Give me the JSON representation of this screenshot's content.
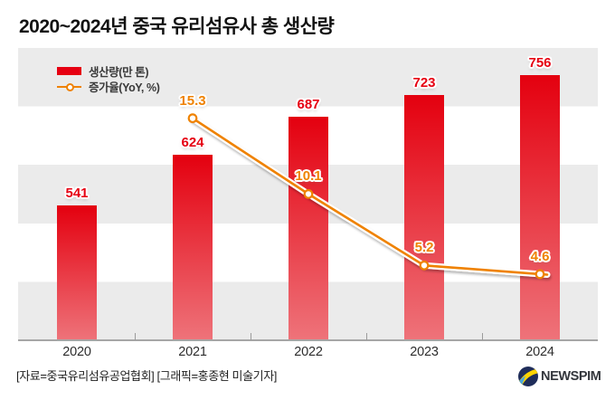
{
  "title": "2020~2024년 중국 유리섬유사 총 생산량",
  "legend": {
    "items": [
      {
        "label": "생산량(만 톤)",
        "type": "bar"
      },
      {
        "label": "증가율(YoY, %)",
        "type": "line"
      }
    ]
  },
  "chart_data": {
    "type": "combo-bar-line",
    "categories": [
      "2020",
      "2021",
      "2022",
      "2023",
      "2024"
    ],
    "series": [
      {
        "name": "생산량(만 톤)",
        "type": "bar",
        "values": [
          541,
          624,
          687,
          723,
          756
        ]
      },
      {
        "name": "증가율(YoY, %)",
        "type": "line",
        "values": [
          null,
          15.3,
          10.1,
          5.2,
          4.6
        ]
      }
    ],
    "title": "2020~2024년 중국 유리섬유사 총 생산량",
    "xlabel": "",
    "ylabel": "",
    "legend_position": "top-left",
    "grid": "horizontal alternating gray/white bands",
    "bar_labels_shown": true,
    "line_labels_shown": true
  },
  "colors": {
    "bar_top": "#e4000f",
    "bar_bottom": "#ee737a",
    "bar_label": "#e60012",
    "line": "#ef8200",
    "band_gray": "#ebebeb",
    "axis": "#a6a6a6",
    "logo_navy": "#1f2d5a",
    "logo_yellow": "#ffd400",
    "logo_blue": "#4aa8e0"
  },
  "footer": {
    "credit": "[자료=중국유리섬유공업협회] [그래픽=홍종현 미술기자]"
  },
  "logo": {
    "text": "NEWSPIM"
  }
}
